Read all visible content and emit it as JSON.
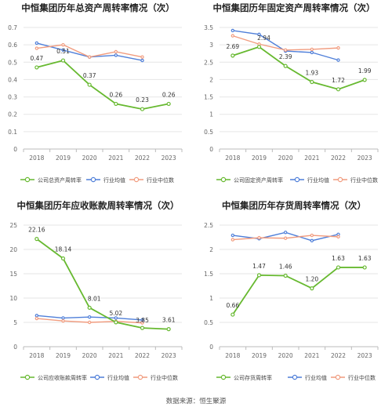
{
  "source": "数据来源：恒生聚源",
  "chart_data": [
    {
      "type": "line",
      "title": "中恒集团历年总资产周转率情况（次）",
      "categories": [
        "2018",
        "2019",
        "2020",
        "2021",
        "2022",
        "2023"
      ],
      "ylim": [
        0,
        0.7
      ],
      "yticks": [
        0,
        0.1,
        0.2,
        0.3,
        0.4,
        0.5,
        0.6,
        0.7
      ],
      "ytick_labels": [
        "0",
        "0.1",
        "0.2",
        "0.3",
        "0.4",
        "0.5",
        "0.6",
        "0.7"
      ],
      "grid": true,
      "legend_position": "bottom",
      "series": [
        {
          "name": "公司总资产周转率",
          "color": "#67b930",
          "values": [
            0.47,
            0.51,
            0.37,
            0.26,
            0.23,
            0.26
          ],
          "labels": [
            "0.47",
            "0.51",
            "0.37",
            "0.26",
            "0.23",
            "0.26"
          ]
        },
        {
          "name": "行业均值",
          "color": "#4f7fd9",
          "values": [
            0.61,
            0.57,
            0.53,
            0.54,
            0.51,
            null
          ],
          "labels": []
        },
        {
          "name": "行业中位数",
          "color": "#f19c7f",
          "values": [
            0.58,
            0.6,
            0.53,
            0.56,
            0.53,
            null
          ],
          "labels": []
        }
      ]
    },
    {
      "type": "line",
      "title": "中恒集团历年固定资产周转率情况（次）",
      "categories": [
        "2018",
        "2019",
        "2020",
        "2021",
        "2022",
        "2023"
      ],
      "ylim": [
        0,
        3.5
      ],
      "yticks": [
        0,
        0.5,
        1,
        1.5,
        2,
        2.5,
        3,
        3.5
      ],
      "ytick_labels": [
        "0",
        "0.5",
        "1",
        "1.5",
        "2",
        "2.5",
        "3",
        "3.5"
      ],
      "grid": true,
      "legend_position": "bottom",
      "series": [
        {
          "name": "公司固定资产周转率",
          "color": "#67b930",
          "values": [
            2.69,
            2.94,
            2.39,
            1.93,
            1.72,
            1.99
          ],
          "labels": [
            "2.69",
            "2.94",
            "2.39",
            "1.93",
            "1.72",
            "1.99"
          ]
        },
        {
          "name": "行业均值",
          "color": "#4f7fd9",
          "values": [
            3.41,
            3.3,
            2.82,
            2.78,
            2.56,
            null
          ],
          "labels": []
        },
        {
          "name": "行业中位数",
          "color": "#f19c7f",
          "values": [
            3.26,
            3.02,
            2.85,
            2.87,
            2.91,
            null
          ],
          "labels": []
        }
      ]
    },
    {
      "type": "line",
      "title": "中恒集团历年应收账款周转率情况（次）",
      "categories": [
        "2018",
        "2019",
        "2020",
        "2021",
        "2022",
        "2023"
      ],
      "ylim": [
        0,
        25
      ],
      "yticks": [
        0,
        5,
        10,
        15,
        20,
        25
      ],
      "ytick_labels": [
        "0",
        "5",
        "10",
        "15",
        "20",
        "25"
      ],
      "grid": true,
      "legend_position": "bottom",
      "series": [
        {
          "name": "公司应收账款周转率",
          "color": "#67b930",
          "values": [
            22.16,
            18.14,
            8.01,
            5.02,
            3.85,
            3.61
          ],
          "labels": [
            "22.16",
            "18.14",
            "8.01",
            "5.02",
            "3.85",
            "3.61"
          ]
        },
        {
          "name": "行业均值",
          "color": "#4f7fd9",
          "values": [
            6.4,
            5.9,
            6.1,
            5.9,
            5.5,
            null
          ],
          "labels": []
        },
        {
          "name": "行业中位数",
          "color": "#f19c7f",
          "values": [
            5.8,
            5.3,
            5.0,
            5.2,
            4.9,
            null
          ],
          "labels": []
        }
      ]
    },
    {
      "type": "line",
      "title": "中恒集团历年存货周转率情况（次）",
      "categories": [
        "2018",
        "2019",
        "2020",
        "2021",
        "2022",
        "2023"
      ],
      "ylim": [
        0,
        2.5
      ],
      "yticks": [
        0,
        0.5,
        1,
        1.5,
        2,
        2.5
      ],
      "ytick_labels": [
        "0",
        "0.5",
        "1",
        "1.5",
        "2",
        "2.5"
      ],
      "grid": true,
      "legend_position": "bottom",
      "series": [
        {
          "name": "公司存货周转率",
          "color": "#67b930",
          "values": [
            0.66,
            1.47,
            1.46,
            1.2,
            1.63,
            1.63
          ],
          "labels": [
            "0.66",
            "1.47",
            "1.46",
            "1.20",
            "1.63",
            "1.63"
          ]
        },
        {
          "name": "行业均值",
          "color": "#4f7fd9",
          "values": [
            2.29,
            2.22,
            2.35,
            2.18,
            2.31,
            null
          ],
          "labels": []
        },
        {
          "name": "行业中位数",
          "color": "#f19c7f",
          "values": [
            2.2,
            2.24,
            2.23,
            2.29,
            2.26,
            null
          ],
          "labels": []
        }
      ]
    }
  ]
}
